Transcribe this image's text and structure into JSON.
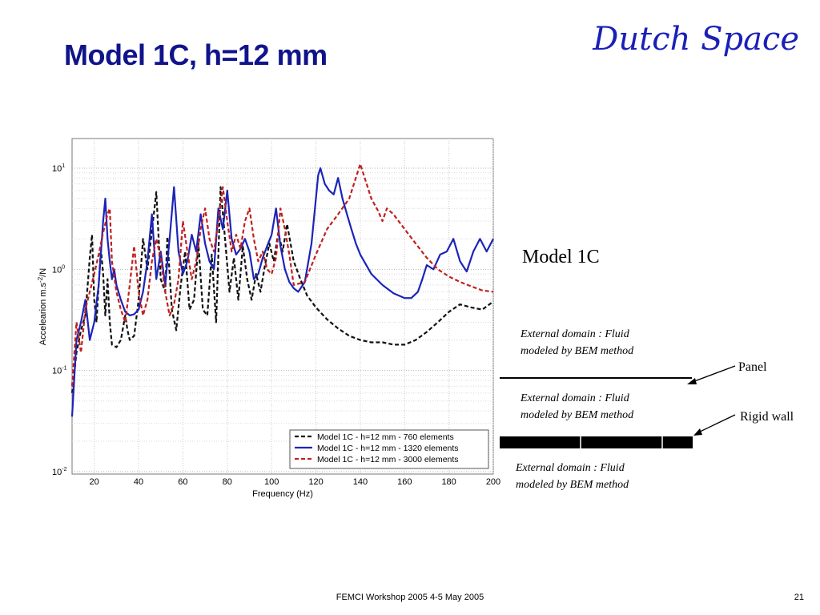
{
  "slide": {
    "title": "Model 1C, h=12 mm",
    "brand": "Dutch Space",
    "model_label": "Model 1C",
    "domain_top": "External domain : Fluid modeled by BEM method",
    "domain_middle": "External domain : Fluid modeled by BEM method",
    "domain_bottom": "External domain : Fluid modeled by BEM method",
    "panel_label": "Panel",
    "wall_label": "Rigid wall",
    "footer": "FEMCI Workshop 2005 4-5  May 2005",
    "page_number": "21"
  },
  "chart_data": {
    "type": "line",
    "title": "",
    "xlabel": "Frequency (Hz)",
    "ylabel": "Accelearion m.s-2/N",
    "xlim": [
      10,
      200
    ],
    "ylim": [
      0.01,
      20
    ],
    "yscale": "log",
    "grid": true,
    "legend_position": "bottom-right",
    "x_ticks": [
      20,
      40,
      60,
      80,
      100,
      120,
      140,
      160,
      180,
      200
    ],
    "y_ticks": [
      {
        "value": 0.01,
        "mantissa": "10",
        "exponent": "-2"
      },
      {
        "value": 0.1,
        "mantissa": "10",
        "exponent": "-1"
      },
      {
        "value": 1,
        "mantissa": "10",
        "exponent": "0"
      },
      {
        "value": 10,
        "mantissa": "10",
        "exponent": "1"
      }
    ],
    "series": [
      {
        "name": "Model 1C - h=12 mm - 760 elements",
        "color": "#111111",
        "dash": "dashed",
        "x": [
          10,
          12,
          14,
          16,
          18,
          19,
          20,
          21,
          22,
          23,
          24,
          25,
          26,
          27,
          28,
          30,
          32,
          34,
          35,
          36,
          38,
          40,
          42,
          44,
          46,
          48,
          50,
          52,
          53,
          55,
          57,
          59,
          61,
          63,
          65,
          67,
          69,
          71,
          73,
          75,
          77,
          79,
          81,
          83,
          85,
          87,
          89,
          91,
          93,
          95,
          97,
          99,
          101,
          103,
          105,
          107,
          110,
          113,
          116,
          120,
          125,
          130,
          135,
          140,
          145,
          150,
          155,
          160,
          165,
          170,
          175,
          180,
          185,
          190,
          195,
          200
        ],
        "y": [
          0.06,
          0.15,
          0.25,
          0.35,
          1.3,
          2.2,
          0.5,
          0.3,
          0.7,
          1.6,
          0.9,
          0.35,
          0.8,
          0.3,
          0.18,
          0.17,
          0.2,
          0.35,
          0.25,
          0.2,
          0.22,
          0.5,
          2.0,
          1.0,
          2.4,
          5.8,
          0.8,
          0.6,
          2.1,
          0.4,
          0.25,
          0.7,
          1.5,
          0.4,
          0.5,
          1.8,
          0.4,
          0.35,
          1.4,
          0.3,
          6.5,
          2.0,
          0.6,
          1.3,
          0.5,
          1.7,
          0.8,
          0.5,
          0.9,
          0.6,
          1.1,
          1.8,
          1.2,
          2.3,
          1.5,
          2.8,
          1.2,
          0.8,
          0.55,
          0.42,
          0.32,
          0.26,
          0.22,
          0.2,
          0.19,
          0.19,
          0.18,
          0.18,
          0.2,
          0.24,
          0.3,
          0.38,
          0.45,
          0.42,
          0.4,
          0.48
        ]
      },
      {
        "name": "Model 1C - h=12 mm - 1320 elements",
        "color": "#1c24b8",
        "dash": "solid",
        "x": [
          10,
          12,
          14,
          16,
          18,
          20,
          22,
          24,
          25,
          26,
          27,
          28,
          29,
          30,
          32,
          34,
          36,
          38,
          40,
          42,
          44,
          46,
          48,
          50,
          52,
          54,
          56,
          58,
          60,
          62,
          64,
          66,
          68,
          70,
          72,
          74,
          76,
          78,
          80,
          82,
          84,
          86,
          88,
          90,
          92,
          94,
          96,
          98,
          100,
          102,
          104,
          106,
          108,
          110,
          112,
          115,
          118,
          120,
          121,
          122,
          124,
          126,
          128,
          130,
          132,
          134,
          136,
          138,
          140,
          145,
          150,
          155,
          160,
          163,
          166,
          168,
          170,
          173,
          176,
          179,
          182,
          185,
          188,
          191,
          194,
          197,
          200
        ],
        "y": [
          0.035,
          0.2,
          0.3,
          0.5,
          0.2,
          0.3,
          0.7,
          3.0,
          5.0,
          2.0,
          1.2,
          0.8,
          1.0,
          0.7,
          0.5,
          0.38,
          0.35,
          0.36,
          0.4,
          0.6,
          1.2,
          3.5,
          0.8,
          1.5,
          0.7,
          2.0,
          6.5,
          1.5,
          0.9,
          1.2,
          2.2,
          1.5,
          3.5,
          1.8,
          1.2,
          1.0,
          4.0,
          2.5,
          6.0,
          2.0,
          1.4,
          1.6,
          2.0,
          1.5,
          0.8,
          0.9,
          1.3,
          1.7,
          2.2,
          4.0,
          1.7,
          1.0,
          0.75,
          0.65,
          0.6,
          0.75,
          1.8,
          5.0,
          8.5,
          10.0,
          7.0,
          6.0,
          5.5,
          8.0,
          5.0,
          3.5,
          2.5,
          1.8,
          1.4,
          0.9,
          0.7,
          0.58,
          0.52,
          0.52,
          0.6,
          0.8,
          1.1,
          1.0,
          1.4,
          1.5,
          2.0,
          1.2,
          0.95,
          1.5,
          2.0,
          1.5,
          2.0
        ]
      },
      {
        "name": "Model 1C - h=12 mm - 3000 elements",
        "color": "#c0201e",
        "dash": "dashed",
        "x": [
          10,
          12,
          14,
          16,
          18,
          20,
          22,
          24,
          26,
          27,
          28,
          30,
          32,
          34,
          36,
          38,
          40,
          42,
          44,
          46,
          48,
          50,
          52,
          54,
          56,
          58,
          60,
          62,
          64,
          66,
          68,
          70,
          72,
          74,
          76,
          78,
          80,
          82,
          84,
          86,
          88,
          90,
          92,
          94,
          96,
          98,
          100,
          102,
          104,
          106,
          108,
          110,
          115,
          120,
          125,
          130,
          135,
          140,
          142,
          145,
          148,
          150,
          152,
          155,
          160,
          165,
          170,
          175,
          180,
          185,
          190,
          195,
          200
        ],
        "y": [
          0.07,
          0.3,
          0.15,
          0.4,
          0.6,
          0.9,
          1.4,
          2.3,
          3.5,
          4.0,
          1.2,
          0.6,
          0.4,
          0.3,
          0.7,
          1.7,
          0.6,
          0.35,
          0.5,
          1.2,
          2.0,
          1.3,
          0.6,
          0.35,
          0.45,
          0.8,
          3.0,
          1.5,
          0.8,
          1.2,
          2.5,
          4.0,
          2.0,
          1.5,
          3.0,
          6.5,
          3.0,
          1.5,
          2.2,
          1.6,
          3.0,
          4.0,
          2.0,
          1.2,
          1.5,
          1.0,
          0.9,
          1.3,
          4.0,
          2.5,
          1.4,
          0.7,
          0.75,
          1.4,
          2.5,
          3.5,
          5.0,
          11.0,
          8.0,
          5.0,
          3.8,
          3.0,
          4.0,
          3.5,
          2.5,
          1.8,
          1.3,
          1.0,
          0.85,
          0.75,
          0.68,
          0.62,
          0.6
        ]
      }
    ]
  }
}
